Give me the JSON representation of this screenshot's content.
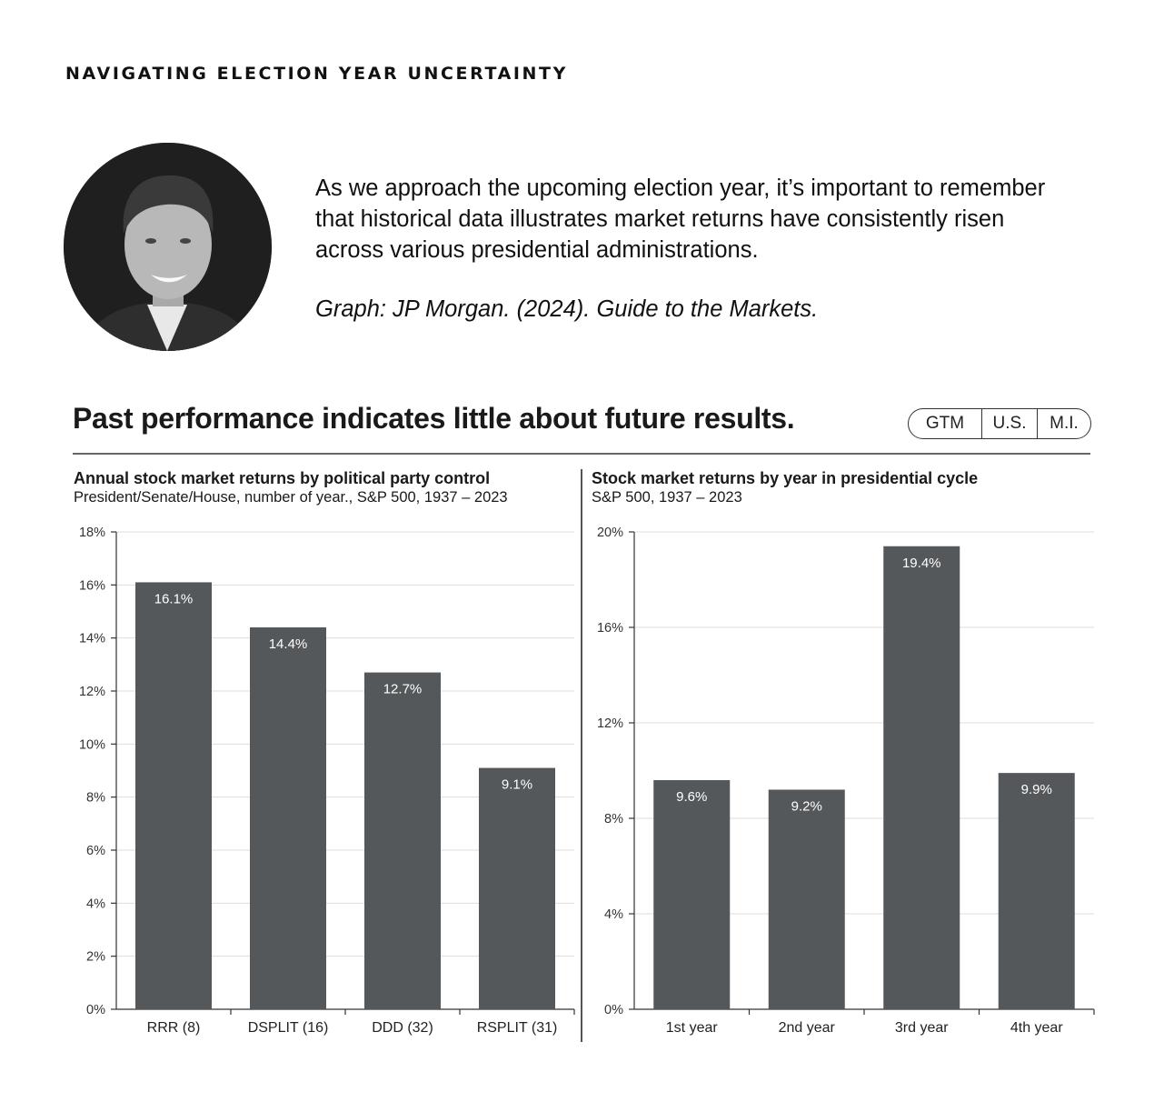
{
  "page": {
    "heading": "NAVIGATING ELECTION YEAR UNCERTAINTY",
    "intro": "As we approach the upcoming election year, it’s important to remember that historical data illustrates market returns have consistently risen across various presidential administrations.",
    "source": "Graph: JP Morgan. (2024). Guide to the Markets."
  },
  "graphic": {
    "title": "Past performance indicates little about future results.",
    "tags": [
      "GTM",
      "U.S.",
      "M.I."
    ]
  },
  "colors": {
    "bar": "#55585b",
    "grid": "#dddddd",
    "axis": "#333333"
  },
  "chart_data": [
    {
      "type": "bar",
      "title": "Annual stock market returns by political party control",
      "subtitle": "President/Senate/House, number of year., S&P 500, 1937 – 2023",
      "categories": [
        "RRR (8)",
        "DSPLIT (16)",
        "DDD (32)",
        "RSPLIT (31)"
      ],
      "values": [
        16.1,
        14.4,
        12.7,
        9.1
      ],
      "value_labels": [
        "16.1%",
        "14.4%",
        "12.7%",
        "9.1%"
      ],
      "ylim": [
        0,
        18
      ],
      "yticks": [
        0,
        2,
        4,
        6,
        8,
        10,
        12,
        14,
        16,
        18
      ],
      "ytick_labels": [
        "0%",
        "2%",
        "4%",
        "6%",
        "8%",
        "10%",
        "12%",
        "14%",
        "16%",
        "18%"
      ],
      "grid": true
    },
    {
      "type": "bar",
      "title": "Stock market returns by year in presidential cycle",
      "subtitle": "S&P 500, 1937 – 2023",
      "categories": [
        "1st year",
        "2nd year",
        "3rd year",
        "4th year"
      ],
      "values": [
        9.6,
        9.2,
        19.4,
        9.9
      ],
      "value_labels": [
        "9.6%",
        "9.2%",
        "19.4%",
        "9.9%"
      ],
      "ylim": [
        0,
        20
      ],
      "yticks": [
        0,
        4,
        8,
        12,
        16,
        20
      ],
      "ytick_labels": [
        "0%",
        "4%",
        "8%",
        "12%",
        "16%",
        "20%"
      ],
      "grid": true
    }
  ]
}
